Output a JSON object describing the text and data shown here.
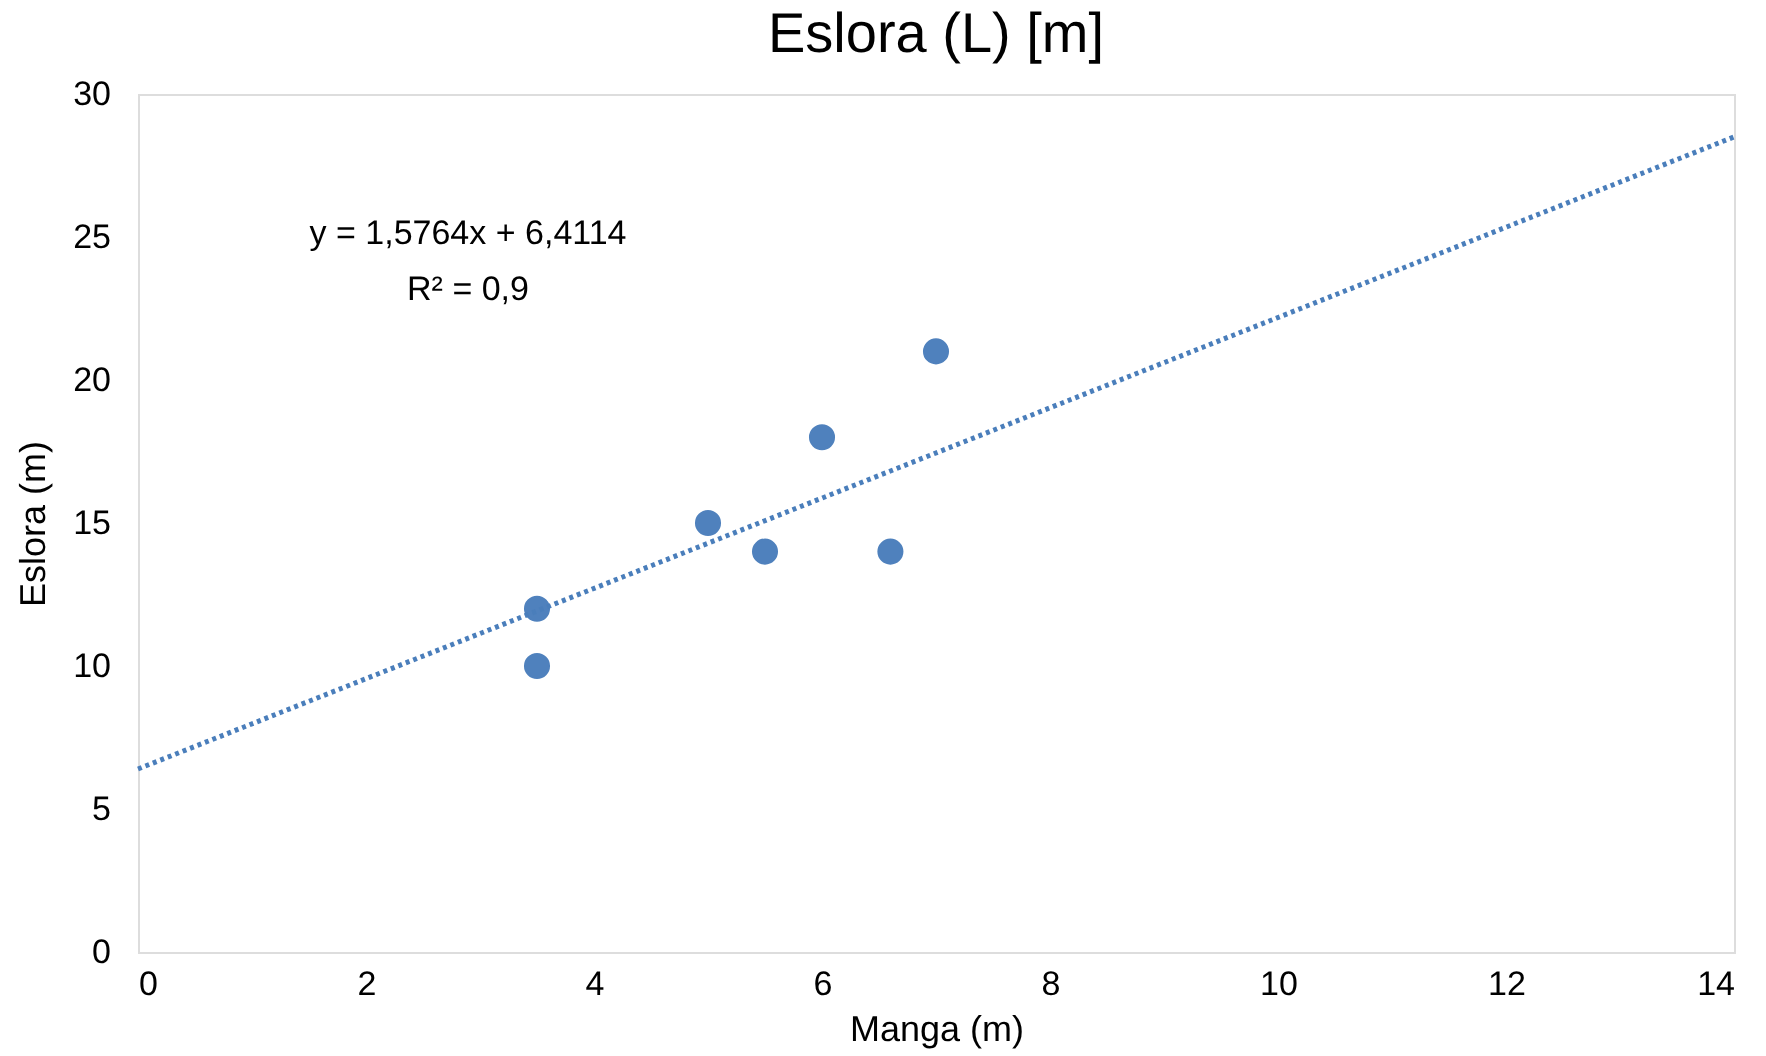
{
  "chart_data": {
    "type": "scatter",
    "title": "Eslora (L) [m]",
    "xlabel": "Manga (m)",
    "ylabel": "Eslora (m)",
    "xlim": [
      0,
      14
    ],
    "xticks": [
      0,
      2,
      4,
      6,
      8,
      10,
      12,
      14
    ],
    "ylim": [
      0,
      30
    ],
    "yticks": [
      0,
      5,
      10,
      15,
      20,
      25,
      30
    ],
    "grid": false,
    "marker": "circle",
    "series": [
      {
        "color": "#4f81bd",
        "x": [
          3.5,
          3.5,
          5,
          5.5,
          6,
          6.6,
          7
        ],
        "values": [
          12,
          10,
          15,
          14,
          18,
          14,
          21
        ]
      },
      {
        "type": "line",
        "color": "#4a7ebb",
        "line_style": "dotted",
        "marker": "none",
        "x": [
          0,
          14
        ],
        "values": [
          6.4,
          28.5
        ]
      }
    ],
    "annotations": [
      "y = 1,5764x + 6,4114",
      "R² = 0,9"
    ]
  }
}
